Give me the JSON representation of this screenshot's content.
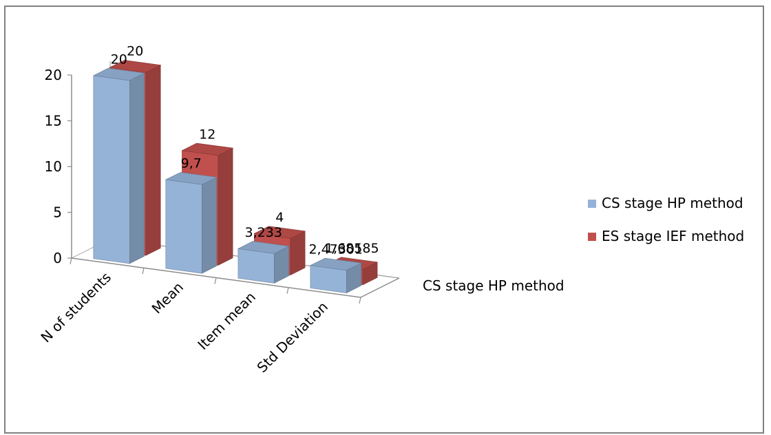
{
  "chart_data": {
    "type": "bar",
    "categories": [
      "N of students",
      "Mean",
      "Item mean",
      "Std Deviation"
    ],
    "series": [
      {
        "name": "CS stage  HP method",
        "values": [
          20,
          9.7,
          3.233,
          2.47301
        ],
        "labels": [
          "20",
          "9,7",
          "3,233",
          "2,47301"
        ],
        "color": "#95B3D7"
      },
      {
        "name": "ES stage IEF method",
        "values": [
          20,
          12,
          4,
          1.68585
        ],
        "labels": [
          "20",
          "12",
          "4",
          "1,68585"
        ],
        "color": "#C0504D"
      }
    ],
    "depth_axis_label": "CS stage  HP method",
    "ylim": [
      0,
      20
    ],
    "yticks": [
      "0",
      "5",
      "10",
      "15",
      "20"
    ],
    "grid": false,
    "legend_position": "right"
  }
}
